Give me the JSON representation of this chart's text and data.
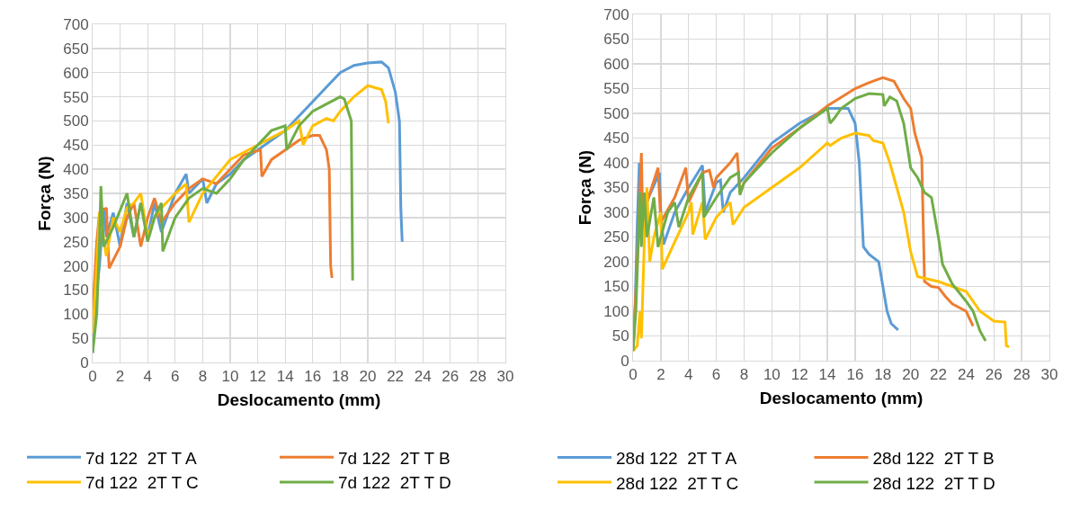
{
  "chart_data": [
    {
      "type": "line",
      "xlabel": "Deslocamento (mm)",
      "ylabel": "Força (N)",
      "xlim": [
        0,
        30
      ],
      "xticks": [
        0,
        2,
        4,
        6,
        8,
        10,
        12,
        14,
        16,
        18,
        20,
        22,
        24,
        26,
        28,
        30
      ],
      "ylim": [
        0,
        700
      ],
      "yticks": [
        0,
        50,
        100,
        150,
        200,
        250,
        300,
        350,
        400,
        450,
        500,
        550,
        600,
        650,
        700
      ],
      "grid": true,
      "legend": "bottom",
      "series": [
        {
          "name": "7d 122  2T T A",
          "color": "#5b9bd5",
          "x": [
            0,
            0.3,
            0.5,
            0.8,
            1,
            1.5,
            2,
            2.5,
            3,
            3.5,
            4,
            4.5,
            5,
            6,
            6.8,
            7,
            8,
            8.3,
            9,
            10,
            11,
            12,
            14,
            15,
            16,
            17,
            18,
            19,
            20,
            21,
            21.5,
            22,
            22.3,
            22.4,
            22.5
          ],
          "values": [
            20,
            150,
            200,
            320,
            260,
            310,
            240,
            330,
            260,
            330,
            260,
            330,
            270,
            350,
            390,
            350,
            380,
            330,
            370,
            390,
            420,
            440,
            480,
            510,
            540,
            570,
            600,
            615,
            620,
            622,
            610,
            560,
            500,
            320,
            250
          ]
        },
        {
          "name": "7d 122  2T T B",
          "color": "#ed7d31",
          "x": [
            0,
            0.3,
            0.5,
            1,
            1.2,
            2,
            2.5,
            3,
            3.5,
            4,
            4.5,
            5,
            6,
            7,
            8,
            9,
            10,
            11,
            12.2,
            12.3,
            13,
            14,
            15,
            16,
            16.5,
            17,
            17.2,
            17.3,
            17.4
          ],
          "values": [
            100,
            250,
            310,
            320,
            195,
            240,
            300,
            330,
            240,
            300,
            340,
            290,
            330,
            360,
            380,
            370,
            400,
            430,
            440,
            385,
            420,
            440,
            460,
            470,
            470,
            440,
            400,
            200,
            175
          ]
        },
        {
          "name": "7d 122  2T T C",
          "color": "#ffc000",
          "x": [
            0,
            0.3,
            0.5,
            1,
            1.5,
            2,
            2.5,
            3,
            3.5,
            4,
            4.5,
            5,
            6,
            6.8,
            7,
            8,
            10,
            12,
            14,
            15,
            15.3,
            16,
            17,
            17.5,
            18,
            19,
            20,
            21,
            21.3,
            21.5
          ],
          "values": [
            60,
            200,
            310,
            220,
            300,
            270,
            320,
            330,
            350,
            260,
            300,
            320,
            350,
            370,
            290,
            350,
            420,
            450,
            480,
            500,
            450,
            490,
            505,
            500,
            520,
            550,
            573,
            565,
            540,
            495
          ]
        },
        {
          "name": "7d 122  2T T D",
          "color": "#70ad47",
          "x": [
            0,
            0.3,
            0.5,
            0.6,
            0.8,
            1.5,
            2.5,
            3,
            3.5,
            4,
            4.5,
            5,
            5.1,
            6,
            7,
            8,
            9,
            10,
            11,
            12,
            13,
            14,
            14.1,
            15,
            16,
            17,
            18,
            18.3,
            18.8,
            18.9
          ],
          "values": [
            20,
            100,
            250,
            365,
            240,
            280,
            350,
            260,
            330,
            250,
            300,
            330,
            230,
            300,
            340,
            360,
            350,
            380,
            420,
            450,
            480,
            490,
            440,
            490,
            520,
            535,
            550,
            545,
            500,
            170
          ]
        }
      ]
    },
    {
      "type": "line",
      "xlabel": "Deslocamento (mm)",
      "ylabel": "Força (N)",
      "xlim": [
        0,
        30
      ],
      "xticks": [
        0,
        2,
        4,
        6,
        8,
        10,
        12,
        14,
        16,
        18,
        20,
        22,
        24,
        26,
        28,
        30
      ],
      "ylim": [
        0,
        700
      ],
      "yticks": [
        0,
        50,
        100,
        150,
        200,
        250,
        300,
        350,
        400,
        450,
        500,
        550,
        600,
        650,
        700
      ],
      "grid": true,
      "legend": "bottom",
      "series": [
        {
          "name": "28d 122  2T T A",
          "color": "#5b9bd5",
          "x": [
            0,
            0.15,
            0.3,
            0.45,
            0.55,
            1.9,
            2,
            2.2,
            3,
            4,
            5,
            5.2,
            6,
            6.3,
            6.5,
            7,
            8,
            10,
            12,
            14,
            15.5,
            16,
            16.3,
            16.6,
            17,
            17.7,
            18,
            18.3,
            18.6,
            19.1
          ],
          "values": [
            19,
            112,
            273,
            400,
            293,
            380,
            300,
            235,
            300,
            350,
            395,
            300,
            360,
            365,
            300,
            340,
            370,
            440,
            480,
            510,
            510,
            480,
            400,
            230,
            215,
            200,
            150,
            100,
            75,
            62
          ]
        },
        {
          "name": "28d 122  2T T B",
          "color": "#ed7d31",
          "x": [
            0,
            0.3,
            0.6,
            0.7,
            1,
            1.8,
            2,
            3,
            3.8,
            4,
            5,
            5.5,
            5.8,
            6,
            7,
            7.5,
            7.7,
            8,
            10,
            12,
            14,
            16,
            17,
            18,
            18.8,
            19.5,
            20,
            20.3,
            20.8,
            21,
            21.5,
            22,
            22.5,
            23,
            24,
            24.5
          ],
          "values": [
            20,
            200,
            420,
            280,
            320,
            390,
            280,
            330,
            390,
            320,
            380,
            385,
            350,
            370,
            400,
            420,
            340,
            360,
            430,
            470,
            515,
            550,
            562,
            572,
            565,
            530,
            510,
            460,
            410,
            160,
            150,
            148,
            130,
            115,
            100,
            70
          ]
        },
        {
          "name": "28d 122  2T T C",
          "color": "#ffc000",
          "x": [
            0,
            0.3,
            0.5,
            0.6,
            0.8,
            1,
            1.2,
            1.5,
            2,
            2.1,
            3,
            4,
            4.2,
            4.3,
            5,
            5.2,
            6,
            7,
            7.2,
            8,
            10,
            12,
            14,
            14.2,
            15,
            16,
            17,
            17.3,
            18,
            18.5,
            19,
            19.5,
            20,
            20.5,
            22,
            23,
            24,
            25,
            26,
            26.8,
            26.9,
            27.1
          ],
          "values": [
            20,
            30,
            100,
            45,
            230,
            350,
            200,
            250,
            300,
            185,
            240,
            300,
            320,
            255,
            320,
            245,
            290,
            320,
            275,
            310,
            350,
            390,
            440,
            435,
            450,
            460,
            455,
            445,
            440,
            400,
            350,
            300,
            220,
            170,
            160,
            150,
            140,
            100,
            80,
            78,
            30,
            28
          ]
        },
        {
          "name": "28d 122  2T T D",
          "color": "#70ad47",
          "x": [
            0,
            0.2,
            0.5,
            0.6,
            0.8,
            1,
            1.5,
            1.8,
            2.5,
            3,
            3.3,
            4,
            5,
            5.1,
            6,
            7,
            7.6,
            7.7,
            8,
            10,
            12,
            14,
            14.2,
            14.5,
            15,
            16,
            17,
            18,
            18.1,
            18.5,
            19,
            19.5,
            20,
            20.5,
            21,
            21.5,
            22,
            22.3,
            23,
            24,
            24.5,
            25,
            25.4
          ],
          "values": [
            20,
            100,
            340,
            230,
            340,
            250,
            330,
            230,
            300,
            320,
            270,
            330,
            380,
            290,
            330,
            370,
            380,
            335,
            360,
            420,
            470,
            510,
            480,
            490,
            510,
            530,
            540,
            538,
            515,
            533,
            525,
            480,
            390,
            370,
            340,
            330,
            250,
            195,
            155,
            120,
            100,
            60,
            40
          ]
        }
      ]
    }
  ]
}
